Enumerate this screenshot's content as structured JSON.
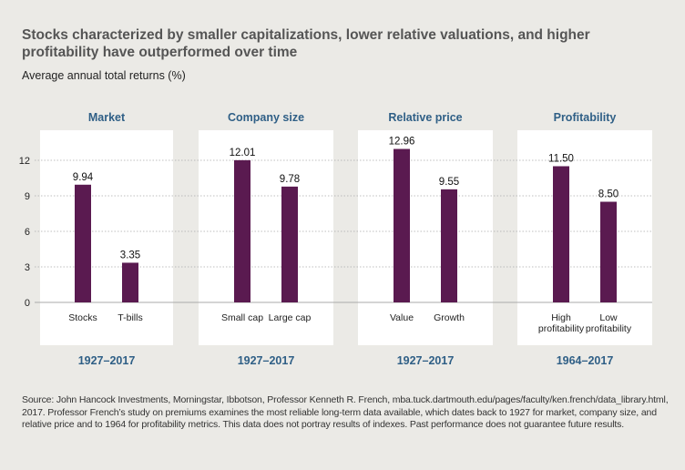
{
  "title": "Stocks characterized by smaller capitalizations, lower relative valuations, and higher profitability have outperformed over time",
  "subtitle": "Average annual total returns (%)",
  "colors": {
    "background": "#ebeae6",
    "panel": "#ffffff",
    "bar": "#5a1a50",
    "group_title": "#2f5f86",
    "period": "#2f5f86",
    "grid": "#aaaaaa"
  },
  "chart_data": {
    "type": "bar",
    "ylabel": "Average annual total returns (%)",
    "ylim": [
      0,
      13
    ],
    "yticks": [
      0,
      3,
      6,
      9,
      12
    ],
    "grid": true,
    "groups": [
      {
        "name": "Market",
        "period": "1927–2017",
        "bars": [
          {
            "label": [
              "Stocks"
            ],
            "value": 9.94,
            "display": "9.94"
          },
          {
            "label": [
              "T-bills"
            ],
            "value": 3.35,
            "display": "3.35"
          }
        ]
      },
      {
        "name": "Company size",
        "period": "1927–2017",
        "bars": [
          {
            "label": [
              "Small cap"
            ],
            "value": 12.01,
            "display": "12.01"
          },
          {
            "label": [
              "Large cap"
            ],
            "value": 9.78,
            "display": "9.78"
          }
        ]
      },
      {
        "name": "Relative price",
        "period": "1927–2017",
        "bars": [
          {
            "label": [
              "Value"
            ],
            "value": 12.96,
            "display": "12.96"
          },
          {
            "label": [
              "Growth"
            ],
            "value": 9.55,
            "display": "9.55"
          }
        ]
      },
      {
        "name": "Profitability",
        "period": "1964–2017",
        "bars": [
          {
            "label": [
              "High",
              "profitability"
            ],
            "value": 11.5,
            "display": "11.50"
          },
          {
            "label": [
              "Low",
              "profitability"
            ],
            "value": 8.5,
            "display": "8.50"
          }
        ]
      }
    ]
  },
  "source": "Source: John Hancock Investments, Morningstar, Ibbotson, Professor Kenneth R. French, mba.tuck.dartmouth.edu/pages/faculty/ken.french/data_library.html, 2017. Professor French’s study on premiums examines the most reliable long-term data available, which dates back to 1927 for market, company size, and relative price and to 1964 for profitability metrics. This data does not portray results of indexes. Past performance does not guarantee future results."
}
